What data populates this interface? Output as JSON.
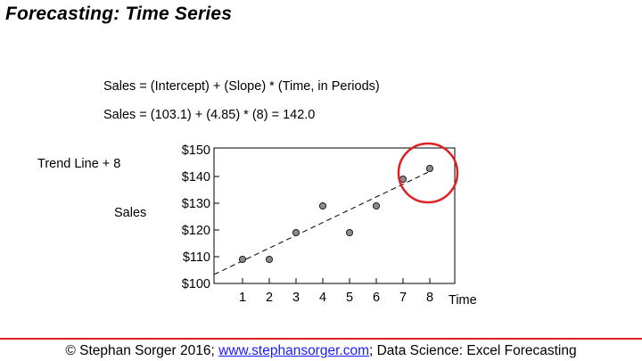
{
  "title": "Forecasting: Time Series",
  "formula_general": "Sales = (Intercept) + (Slope) * (Time, in Periods)",
  "formula_specific": "Sales = (103.1) + (4.85) * (8) = 142.0",
  "trend_label": "Trend Line + 8",
  "footer": {
    "prefix": "© Stephan Sorger 2016; ",
    "link": "www.stephansorger.com",
    "suffix": "; Data Science: Excel Forecasting"
  },
  "colors": {
    "accent_red": "#e02020",
    "point_fill": "#8a8a8a",
    "link": "#1a1aff"
  },
  "chart_data": {
    "type": "scatter",
    "x": [
      1,
      2,
      3,
      4,
      5,
      6,
      7,
      8
    ],
    "y": [
      109,
      109,
      119,
      129,
      119,
      129,
      139,
      143
    ],
    "x_ticks": [
      "1",
      "2",
      "3",
      "4",
      "5",
      "6",
      "7",
      "8"
    ],
    "y_ticks": [
      "$100",
      "$110",
      "$120",
      "$130",
      "$140",
      "$150"
    ],
    "y_tick_values": [
      100,
      110,
      120,
      130,
      140,
      150
    ],
    "xlabel": "Time",
    "ylabel": "Sales",
    "xlim": [
      0,
      8.5
    ],
    "ylim": [
      100,
      150
    ],
    "trend_line": {
      "intercept": 103.1,
      "slope": 4.85,
      "x_start": 0,
      "x_end": 8
    },
    "highlight": {
      "x": 8,
      "y": 143,
      "marker": "circle"
    },
    "grid": false
  }
}
